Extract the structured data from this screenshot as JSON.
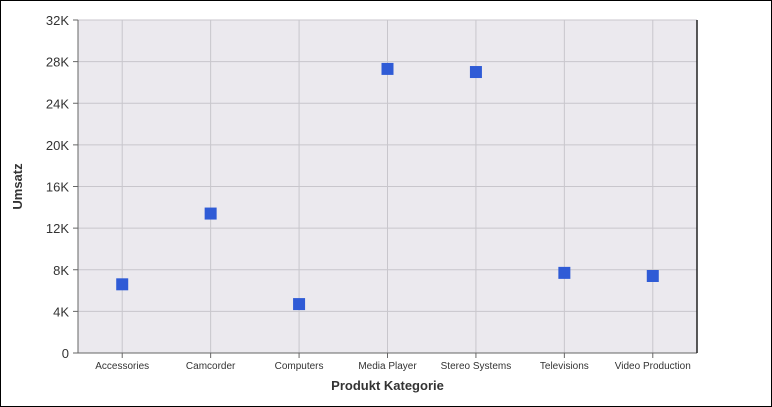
{
  "chart_data": {
    "type": "scatter",
    "title": "",
    "xlabel": "Produkt Kategorie",
    "ylabel": "Umsatz",
    "categories": [
      "Accessories",
      "Camcorder",
      "Computers",
      "Media Player",
      "Stereo Systems",
      "Televisions",
      "Video Production"
    ],
    "series": [
      {
        "values": [
          6600,
          13400,
          4700,
          27300,
          27000,
          7700,
          7400
        ]
      }
    ],
    "ylim": [
      0,
      32000
    ],
    "yticks": [
      0,
      4000,
      8000,
      12000,
      16000,
      20000,
      24000,
      28000,
      32000
    ],
    "ytick_labels": [
      "0",
      "4K",
      "8K",
      "12K",
      "16K",
      "20K",
      "24K",
      "28K",
      "32K"
    ],
    "grid": true,
    "legend": "none",
    "colors": {
      "marker": "#2f5bd6",
      "plot_background": "#ebe9ee",
      "gridline": "#c8c6cc"
    }
  }
}
